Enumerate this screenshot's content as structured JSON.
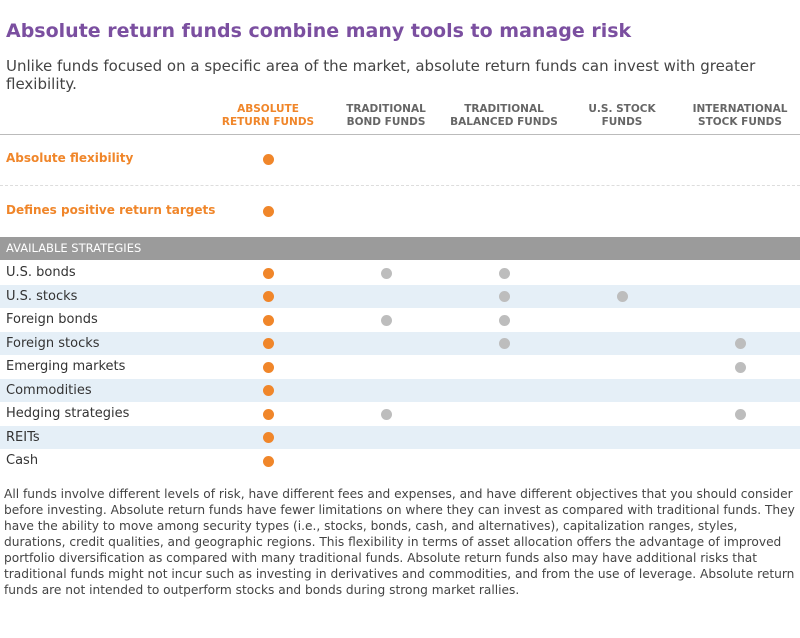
{
  "header": {
    "title": "Absolute return funds combine many tools to manage risk",
    "subtitle": "Unlike funds focused on a specific area of the market, absolute return funds can invest with greater flexibility."
  },
  "table": {
    "columns": [
      "ABSOLUTE\nRETURN FUNDS",
      "TRADITIONAL\nBOND FUNDS",
      "TRADITIONAL\nBALANCED FUNDS",
      "U.S. STOCK\nFUNDS",
      "INTERNATIONAL\nSTOCK FUNDS"
    ],
    "features": [
      {
        "label": "Absolute flexibility",
        "dots": [
          true,
          false,
          false,
          false,
          false
        ]
      },
      {
        "label": "Defines positive return targets",
        "dots": [
          true,
          false,
          false,
          false,
          false
        ]
      }
    ],
    "section": "AVAILABLE STRATEGIES",
    "strategies": [
      {
        "label": "U.S. bonds",
        "dots": [
          true,
          true,
          true,
          false,
          false
        ]
      },
      {
        "label": "U.S. stocks",
        "dots": [
          true,
          false,
          true,
          true,
          false
        ]
      },
      {
        "label": "Foreign bonds",
        "dots": [
          true,
          true,
          true,
          false,
          false
        ]
      },
      {
        "label": "Foreign stocks",
        "dots": [
          true,
          false,
          true,
          false,
          true
        ]
      },
      {
        "label": "Emerging markets",
        "dots": [
          true,
          false,
          false,
          false,
          true
        ]
      },
      {
        "label": "Commodities",
        "dots": [
          true,
          false,
          false,
          false,
          false
        ]
      },
      {
        "label": "Hedging strategies",
        "dots": [
          true,
          true,
          false,
          false,
          true
        ]
      },
      {
        "label": "REITs",
        "dots": [
          true,
          false,
          false,
          false,
          false
        ]
      },
      {
        "label": "Cash",
        "dots": [
          true,
          false,
          false,
          false,
          false
        ]
      }
    ]
  },
  "footnote": "All funds involve different levels of risk, have different fees and expenses, and have different objectives that you should consider before investing. Absolute return funds have fewer limitations on where they can invest as compared with traditional funds. They have the ability to move among security types (i.e., stocks, bonds, cash, and alternatives), capitalization ranges, styles, durations, credit qualities, and geographic regions. This flexibility in terms of asset allocation offers the advantage of improved portfolio diversification as compared with many traditional funds. Absolute return funds also may have additional risks that traditional funds might not incur such as investing in derivatives and commodities, and from the use of leverage. Absolute return funds are not intended to outperform stocks and bonds during strong market rallies."
}
